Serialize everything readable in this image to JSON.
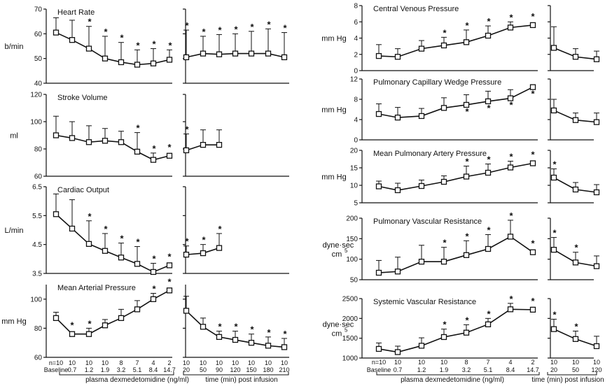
{
  "chart_data": [
    {
      "type": "line",
      "title": "Heart Rate",
      "ylabel": "b/min",
      "ylim": [
        40,
        70
      ],
      "yticks": [
        40,
        50,
        60,
        70
      ],
      "dose": {
        "values": [
          60.5,
          57.5,
          54,
          50,
          48.5,
          47.5,
          48,
          49.5
        ],
        "err": [
          6,
          8,
          9,
          9,
          8,
          6,
          6,
          4
        ],
        "sig": [
          false,
          false,
          true,
          true,
          true,
          true,
          true,
          true
        ],
        "sig_pos": "above"
      },
      "post": {
        "values": [
          50.5,
          52,
          51.7,
          52,
          52,
          52,
          50.5
        ],
        "err": [
          11,
          7,
          8,
          8,
          9,
          10,
          10
        ],
        "sig": [
          true,
          true,
          true,
          true,
          true,
          true,
          true
        ],
        "sig_pos": "above"
      }
    },
    {
      "type": "line",
      "title": "Stroke Volume",
      "ylabel": "ml",
      "ylim": [
        60,
        120
      ],
      "yticks": [
        60,
        80,
        100,
        120
      ],
      "dose": {
        "values": [
          90,
          88,
          85,
          86,
          85,
          78,
          72,
          75
        ],
        "err": [
          14,
          12,
          12,
          9,
          8,
          14,
          5,
          0
        ],
        "sig": [
          false,
          false,
          false,
          false,
          false,
          true,
          true,
          true
        ],
        "sig_pos": "above"
      },
      "post": {
        "values": [
          79,
          83,
          83
        ],
        "err": [
          12,
          11,
          11
        ],
        "sig": [
          true,
          false,
          false
        ],
        "sig_pos": "above"
      }
    },
    {
      "type": "line",
      "title": "Cardiac Output",
      "ylabel": "L/min",
      "ylim": [
        3.5,
        6.5
      ],
      "yticks": [
        3.5,
        4.5,
        5.5,
        6.5
      ],
      "ytick_labels": [
        "3.5",
        "4.5",
        "5.5",
        "6.5"
      ],
      "dose": {
        "values": [
          5.55,
          5.05,
          4.52,
          4.28,
          4.05,
          3.83,
          3.55,
          3.78
        ],
        "err": [
          0.7,
          1.0,
          0.8,
          0.6,
          0.5,
          0.6,
          0.3,
          0.0
        ],
        "sig": [
          false,
          false,
          true,
          true,
          true,
          true,
          true,
          true
        ],
        "sig_pos": "above"
      },
      "post": {
        "values": [
          4.15,
          4.2,
          4.38
        ],
        "err": [
          0.3,
          0.3,
          0.5
        ],
        "sig": [
          true,
          true,
          true
        ],
        "sig_pos": "above"
      }
    },
    {
      "type": "line",
      "title": "Mean Arterial Pressure",
      "ylabel": "mm Hg",
      "ylim": [
        60,
        110
      ],
      "yticks": [
        60,
        80,
        100
      ],
      "dose": {
        "values": [
          87,
          76,
          76,
          82,
          87,
          93,
          100,
          106
        ],
        "err": [
          4,
          0,
          4,
          4,
          6,
          6,
          4,
          0
        ],
        "sig": [
          false,
          true,
          true,
          false,
          false,
          false,
          true,
          true
        ],
        "sig_pos": "above"
      },
      "post": {
        "values": [
          92,
          81,
          74,
          72,
          70,
          68,
          67
        ],
        "err": [
          10,
          6,
          4,
          6,
          6,
          6,
          6
        ],
        "sig": [
          false,
          false,
          true,
          true,
          true,
          true,
          true
        ],
        "sig_pos": "above"
      }
    },
    {
      "type": "line",
      "title": "Central Venous Pressure",
      "ylabel": "mm Hg",
      "ylim": [
        0,
        8
      ],
      "yticks": [
        0,
        2,
        4,
        6,
        8
      ],
      "dose": {
        "values": [
          1.8,
          1.7,
          2.7,
          3.1,
          3.5,
          4.3,
          5.3,
          5.6
        ],
        "err": [
          1.4,
          1.0,
          1.0,
          1.0,
          1.5,
          1.2,
          0.7,
          0.0
        ],
        "sig": [
          false,
          false,
          false,
          true,
          true,
          true,
          true,
          true
        ],
        "sig_pos": "above"
      },
      "post": {
        "values": [
          2.8,
          1.7,
          1.4
        ],
        "err": [
          2.6,
          1.0,
          1.0
        ],
        "sig": [
          false,
          false,
          false
        ],
        "sig_pos": "above"
      }
    },
    {
      "type": "line",
      "title": "Pulmonary Capillary Wedge Pressure",
      "ylabel": "mm Hg",
      "ylim": [
        0,
        12
      ],
      "yticks": [
        0,
        4,
        8,
        12
      ],
      "dose": {
        "values": [
          5.1,
          4.4,
          4.7,
          6.3,
          6.9,
          7.6,
          8.2,
          10.4
        ],
        "err": [
          2.0,
          2.0,
          1.5,
          2.0,
          2.0,
          2.0,
          1.7,
          0.0
        ],
        "sig": [
          false,
          false,
          false,
          false,
          true,
          true,
          true,
          true
        ],
        "sig_pos": "below"
      },
      "post": {
        "values": [
          5.8,
          3.9,
          3.5
        ],
        "err": [
          2.2,
          1.4,
          1.8
        ],
        "sig": [
          false,
          false,
          false
        ],
        "sig_pos": "above"
      }
    },
    {
      "type": "line",
      "title": "Mean Pulmonary Artery Pressure",
      "ylabel": "mm Hg",
      "ylim": [
        5,
        20
      ],
      "yticks": [
        5,
        10,
        15,
        20
      ],
      "dose": {
        "values": [
          9.7,
          8.6,
          9.8,
          11.0,
          12.5,
          13.6,
          15.1,
          16.3
        ],
        "err": [
          1.5,
          2.0,
          1.7,
          1.7,
          3.0,
          2.5,
          1.8,
          0.0
        ],
        "sig": [
          false,
          false,
          false,
          false,
          true,
          true,
          true,
          true
        ],
        "sig_pos": "above"
      },
      "post": {
        "values": [
          12.2,
          8.8,
          8.0
        ],
        "err": [
          2.5,
          2.0,
          2.2
        ],
        "sig": [
          true,
          false,
          false
        ],
        "sig_pos": "above"
      }
    },
    {
      "type": "line",
      "title": "Pulmonary Vascular Resistance",
      "ylabel": "dyne·sec",
      "ylabel2": "cm",
      "ylabel2_sup": "5",
      "ylim": [
        50,
        200
      ],
      "yticks": [
        50,
        100,
        150,
        200
      ],
      "dose": {
        "values": [
          67,
          70,
          94,
          94,
          110,
          125,
          155,
          117
        ],
        "err": [
          30,
          35,
          40,
          35,
          35,
          35,
          40,
          0
        ],
        "sig": [
          false,
          false,
          false,
          true,
          true,
          true,
          true,
          true
        ],
        "sig_pos": "above"
      },
      "post": {
        "values": [
          123,
          92,
          83
        ],
        "err": [
          30,
          25,
          25
        ],
        "sig": [
          true,
          true,
          false
        ],
        "sig_pos": "above"
      }
    },
    {
      "type": "line",
      "title": "Systemic Vascular Resistance",
      "ylabel": "dyne·sec",
      "ylabel2": "cm",
      "ylabel2_sup": "5",
      "ylim": [
        1000,
        2500
      ],
      "yticks": [
        1000,
        1500,
        2000,
        2500
      ],
      "dose": {
        "values": [
          1230,
          1150,
          1310,
          1530,
          1640,
          1850,
          2230,
          2220
        ],
        "err": [
          150,
          150,
          200,
          200,
          200,
          150,
          150,
          0
        ],
        "sig": [
          false,
          false,
          false,
          true,
          true,
          true,
          true,
          true
        ],
        "sig_pos": "above"
      },
      "post": {
        "values": [
          1730,
          1480,
          1300
        ],
        "err": [
          250,
          200,
          250
        ],
        "sig": [
          true,
          true,
          false
        ],
        "sig_pos": "above"
      }
    }
  ],
  "left_axis": {
    "dose_labels": [
      "Baseline",
      "0.7",
      "1.2",
      "1.9",
      "3.2",
      "5.1",
      "8.4",
      "14.7"
    ],
    "dose_n": [
      "n=10",
      "10",
      "10",
      "10",
      "8",
      "7",
      "4",
      "2"
    ],
    "time_labels": [
      "20",
      "50",
      "90",
      "120",
      "150",
      "180",
      "210"
    ],
    "time_n": [
      "10",
      "10",
      "10",
      "10",
      "10",
      "10",
      "10"
    ],
    "dose_caption": "plasma dexmedetomidine (ng/ml)",
    "time_caption": "time (min) post infusion"
  },
  "right_axis": {
    "dose_labels": [
      "Baseline",
      "0.7",
      "1.2",
      "1.9",
      "3.2",
      "5.1",
      "8.4",
      "14.7"
    ],
    "dose_n": [
      "n=10",
      "10",
      "10",
      "10",
      "8",
      "7",
      "4",
      "2"
    ],
    "time_labels": [
      "20",
      "50",
      "120"
    ],
    "time_n": [
      "10",
      "10",
      "10"
    ],
    "dose_caption": "plasma dexmedetomidine (ng/ml)",
    "time_caption": "time (min) post infusion"
  },
  "sig_symbol": "*"
}
